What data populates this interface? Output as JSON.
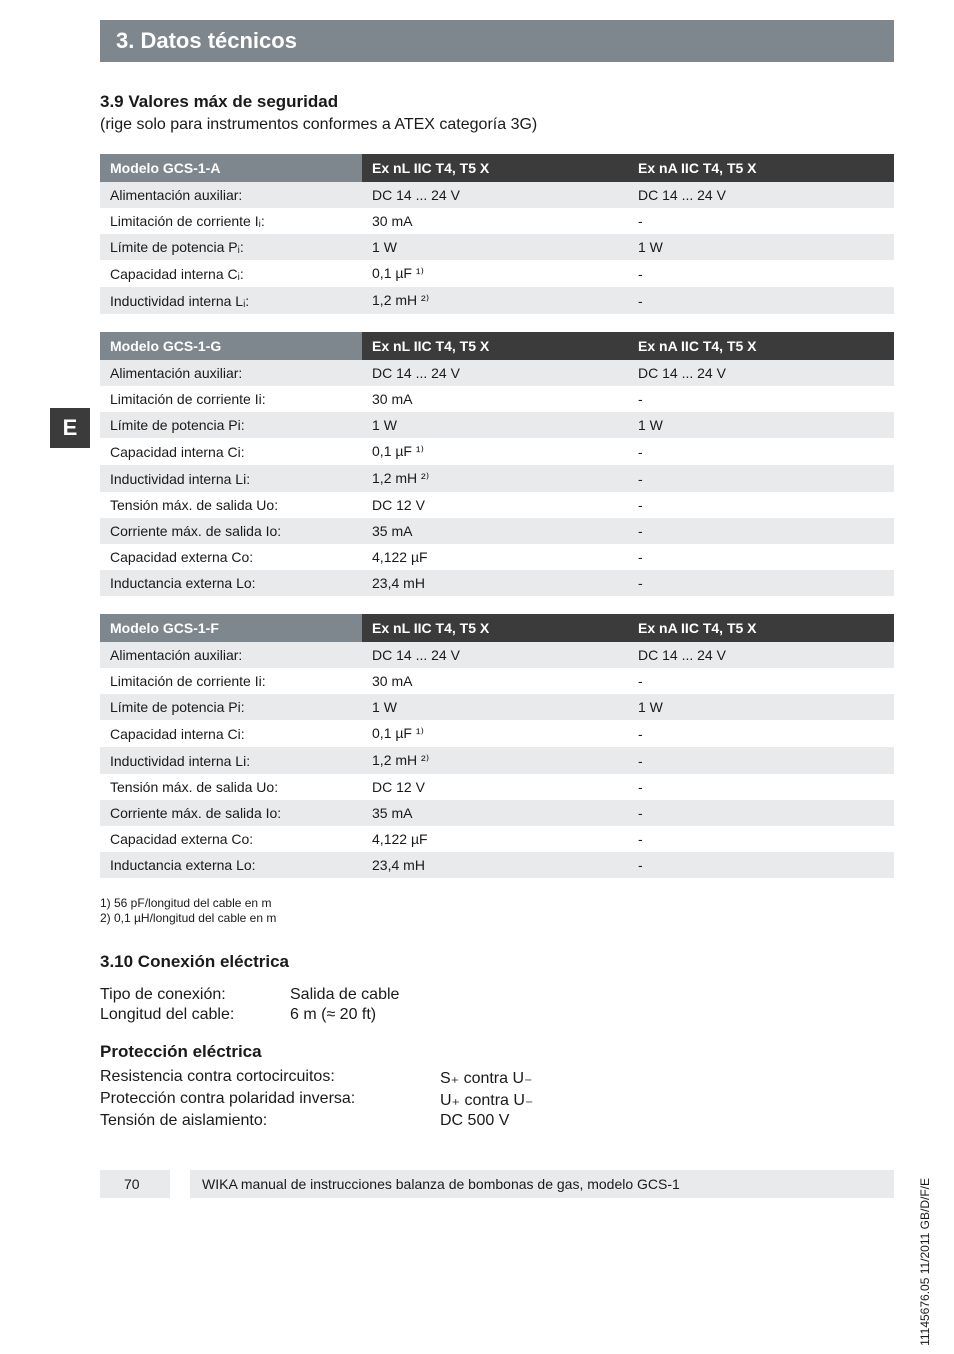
{
  "section_header": "3. Datos técnicos",
  "side_tab": "E",
  "sec39": {
    "title": "3.9 Valores máx de seguridad",
    "intro": "(rige solo para instrumentos conformes a ATEX categoría 3G)"
  },
  "tables": {
    "headers": {
      "ex_nl": "Ex nL IIC T4, T5 X",
      "ex_na": "Ex nA IIC T4, T5 X"
    },
    "a": {
      "model": "Modelo GCS-1-A",
      "rows": [
        {
          "label": "Alimentación auxiliar:",
          "nl": "DC 14 ... 24 V",
          "na": "DC 14 ... 24 V"
        },
        {
          "label": "Limitación de corriente Iᵢ:",
          "nl": "30 mA",
          "na": "-"
        },
        {
          "label": "Límite de potencia Pᵢ:",
          "nl": "1 W",
          "na": "1 W"
        },
        {
          "label": "Capacidad interna Cᵢ:",
          "nl": "0,1 µF ¹⁾",
          "na": "-"
        },
        {
          "label": "Inductividad interna Lᵢ:",
          "nl": "1,2 mH ²⁾",
          "na": "-"
        }
      ]
    },
    "g": {
      "model": "Modelo GCS-1-G",
      "rows": [
        {
          "label": "Alimentación auxiliar:",
          "nl": "DC 14 ... 24 V",
          "na": "DC 14 ... 24 V"
        },
        {
          "label": "Limitación de corriente Ii:",
          "nl": "30 mA",
          "na": "-"
        },
        {
          "label": "Límite de potencia Pi:",
          "nl": "1 W",
          "na": "1 W"
        },
        {
          "label": "Capacidad interna Ci:",
          "nl": "0,1 µF ¹⁾",
          "na": "-"
        },
        {
          "label": "Inductividad interna Li:",
          "nl": "1,2 mH ²⁾",
          "na": "-"
        },
        {
          "label": "Tensión máx. de salida Uo:",
          "nl": "DC 12 V",
          "na": "-"
        },
        {
          "label": "Corriente máx. de salida Io:",
          "nl": "35 mA",
          "na": "-"
        },
        {
          "label": "Capacidad externa Co:",
          "nl": "4,122 µF",
          "na": "-"
        },
        {
          "label": "Inductancia externa Lo:",
          "nl": "23,4 mH",
          "na": "-"
        }
      ]
    },
    "f": {
      "model": "Modelo GCS-1-F",
      "rows": [
        {
          "label": "Alimentación auxiliar:",
          "nl": "DC 14 ... 24 V",
          "na": "DC 14 ... 24 V"
        },
        {
          "label": "Limitación de corriente Ii:",
          "nl": "30 mA",
          "na": "-"
        },
        {
          "label": "Límite de potencia Pi:",
          "nl": "1 W",
          "na": "1 W"
        },
        {
          "label": "Capacidad interna Ci:",
          "nl": "0,1 µF ¹⁾",
          "na": "-"
        },
        {
          "label": "Inductividad interna Li:",
          "nl": "1,2 mH ²⁾",
          "na": "-"
        },
        {
          "label": "Tensión máx. de salida Uo:",
          "nl": "DC 12 V",
          "na": "-"
        },
        {
          "label": "Corriente máx. de salida Io:",
          "nl": "35 mA",
          "na": "-"
        },
        {
          "label": "Capacidad externa Co:",
          "nl": "4,122 µF",
          "na": "-"
        },
        {
          "label": "Inductancia externa Lo:",
          "nl": "23,4 mH",
          "na": "-"
        }
      ]
    }
  },
  "footnotes": {
    "l1": "1) 56 pF/longitud del cable en m",
    "l2": "2) 0,1 µH/longitud del cable en m"
  },
  "sec310": {
    "title": "3.10 Conexión eléctrica",
    "conn": {
      "tipo_k": "Tipo de conexión:",
      "tipo_v": "Salida de cable",
      "long_k": "Longitud del cable:",
      "long_v": "6 m (≈ 20 ft)"
    },
    "prot_title": "Protección eléctrica",
    "prot": {
      "res_k": "Resistencia contra cortocircuitos:",
      "res_v": "S₊ contra U₋",
      "pol_k": "Protección contra polaridad inversa:",
      "pol_v": "U₊ contra U₋",
      "ais_k": "Tensión de aislamiento:",
      "ais_v": "DC 500 V"
    }
  },
  "vertical_code": "11145676.05 11/2011 GB/D/F/E",
  "footer": {
    "page": "70",
    "text": "WIKA manual de instrucciones balanza de bombonas de gas, modelo GCS-1"
  },
  "colors": {
    "medium_gray": "#7e878e",
    "dark_gray": "#3b3b3b",
    "row_gray": "#e9eaeb"
  }
}
